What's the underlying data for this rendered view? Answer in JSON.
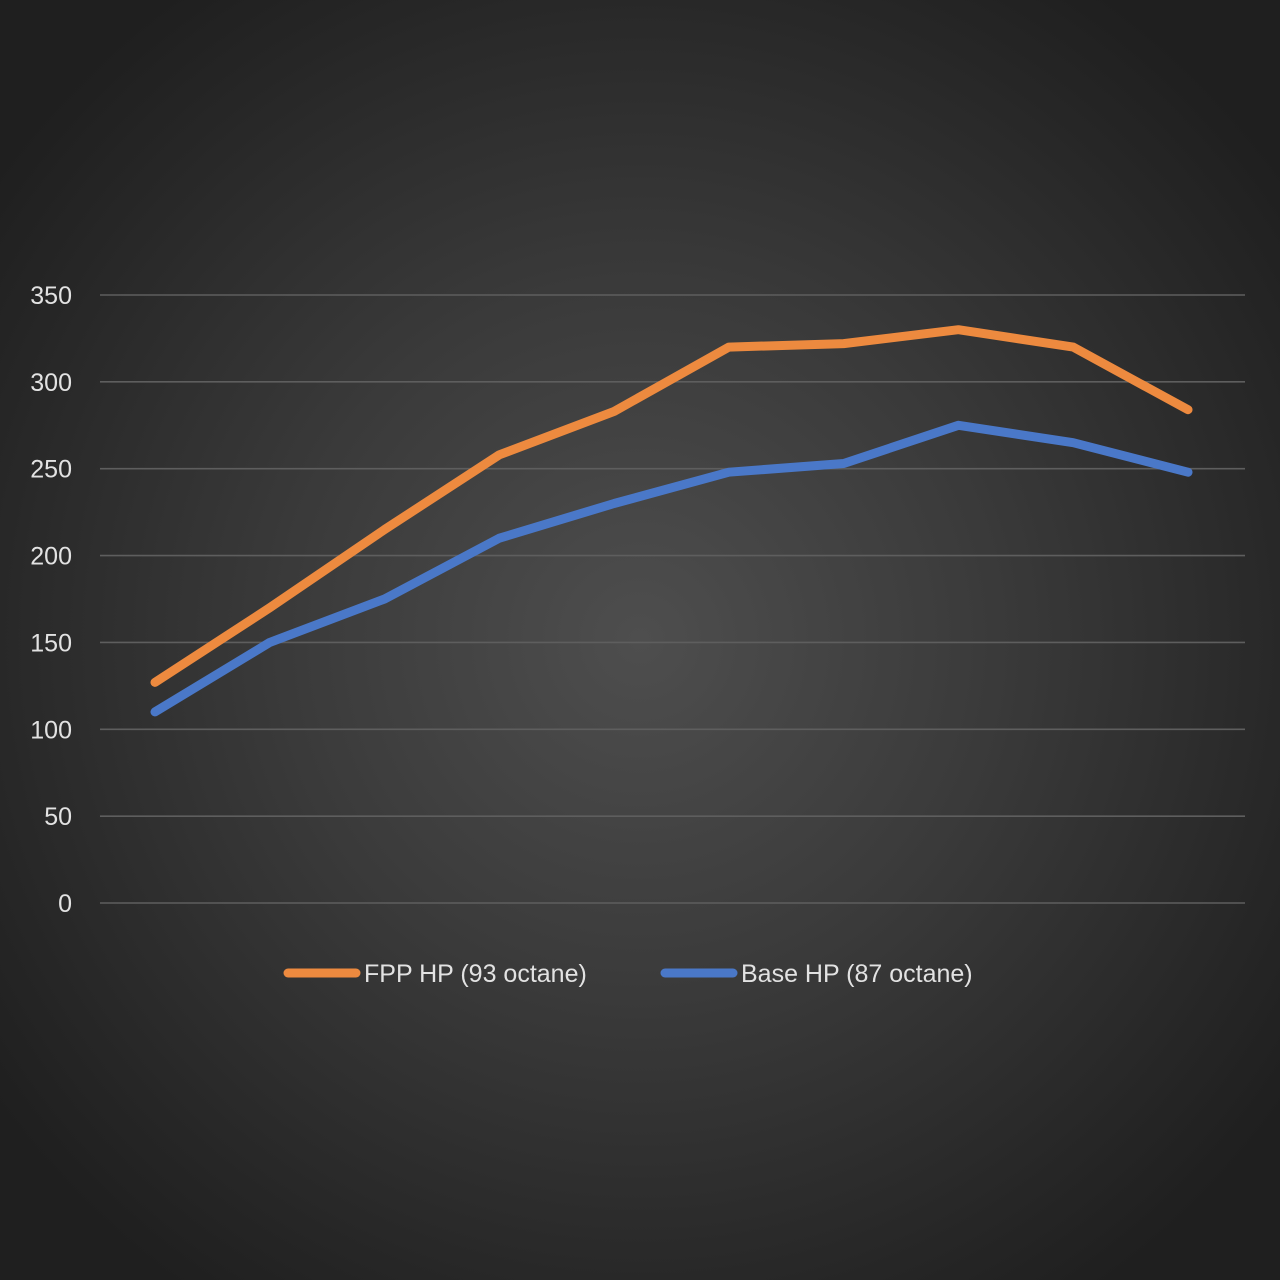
{
  "chart_data": {
    "type": "line",
    "title": "",
    "xlabel": "",
    "ylabel": "",
    "x": [
      1,
      2,
      3,
      4,
      5,
      6,
      7,
      8,
      9,
      10
    ],
    "ylim": [
      0,
      350
    ],
    "yticks": [
      0,
      50,
      100,
      150,
      200,
      250,
      300,
      350
    ],
    "grid": true,
    "legend_position": "bottom",
    "background": "#3a3a3a",
    "series": [
      {
        "name": "FPP HP (93 octane)",
        "color": "#ed8a3f",
        "values": [
          127,
          170,
          215,
          258,
          283,
          320,
          322,
          330,
          320,
          284
        ]
      },
      {
        "name": "Base HP (87 octane)",
        "color": "#4a78c8",
        "values": [
          110,
          150,
          175,
          210,
          230,
          248,
          253,
          275,
          265,
          248
        ]
      }
    ]
  }
}
